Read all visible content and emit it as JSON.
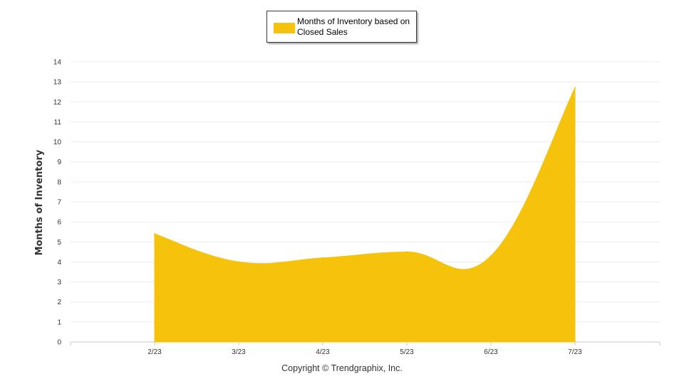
{
  "chart_data": {
    "type": "area",
    "categories": [
      "2/23",
      "3/23",
      "4/23",
      "5/23",
      "6/23",
      "7/23"
    ],
    "series": [
      {
        "name": "Months of Inventory based on Closed Sales",
        "values": [
          5.4,
          4.0,
          4.2,
          4.5,
          4.3,
          12.7
        ]
      }
    ],
    "ylabel": "Months of Inventory",
    "ylim": [
      0,
      14
    ],
    "yticks": [
      0,
      1,
      2,
      3,
      4,
      5,
      6,
      7,
      8,
      9,
      10,
      11,
      12,
      13,
      14
    ],
    "grid": true,
    "legend_position": "top-center",
    "color": "#f5c20c"
  },
  "footer": {
    "copyright": "Copyright © Trendgraphix, Inc."
  }
}
